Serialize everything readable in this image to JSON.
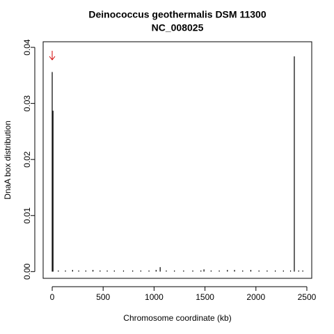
{
  "chart_data": {
    "type": "spike",
    "title": "Deinococcus geothermalis DSM 11300",
    "subtitle": "NC_008025",
    "x_label": "Chromosome coordinate (kb)",
    "y_label": "DnaA box distribution",
    "x": [
      0,
      8,
      60,
      130,
      200,
      260,
      330,
      400,
      470,
      540,
      610,
      700,
      790,
      870,
      950,
      1020,
      1060,
      1120,
      1200,
      1290,
      1380,
      1460,
      1490,
      1560,
      1640,
      1720,
      1790,
      1870,
      1950,
      2030,
      2110,
      2190,
      2270,
      2340,
      2377,
      2420,
      2460
    ],
    "values": [
      0.0356,
      0.0287,
      0.0002,
      0.0002,
      0.0003,
      0.0002,
      0.0002,
      0.0003,
      0.0002,
      0.0002,
      0.0002,
      0.0002,
      0.0002,
      0.0002,
      0.0002,
      0.0003,
      0.0008,
      0.0002,
      0.0002,
      0.0002,
      0.0002,
      0.0002,
      0.0004,
      0.0002,
      0.0002,
      0.0003,
      0.0003,
      0.0002,
      0.0003,
      0.0002,
      0.0002,
      0.0002,
      0.0002,
      0.0002,
      0.0384,
      0.0002,
      0.0002
    ],
    "color": "#000000",
    "xlim": [
      -89,
      2548
    ],
    "ylim": [
      -0.0012,
      0.041
    ],
    "xticks": [
      0,
      500,
      1000,
      1500,
      2000,
      2500
    ],
    "yticks": [
      {
        "value": 0,
        "label": "0.00"
      },
      {
        "value": 0.01,
        "label": "0.01"
      },
      {
        "value": 0.02,
        "label": "0.02"
      },
      {
        "value": 0.03,
        "label": "0.03"
      },
      {
        "value": 0.04,
        "label": "0.04"
      }
    ]
  }
}
